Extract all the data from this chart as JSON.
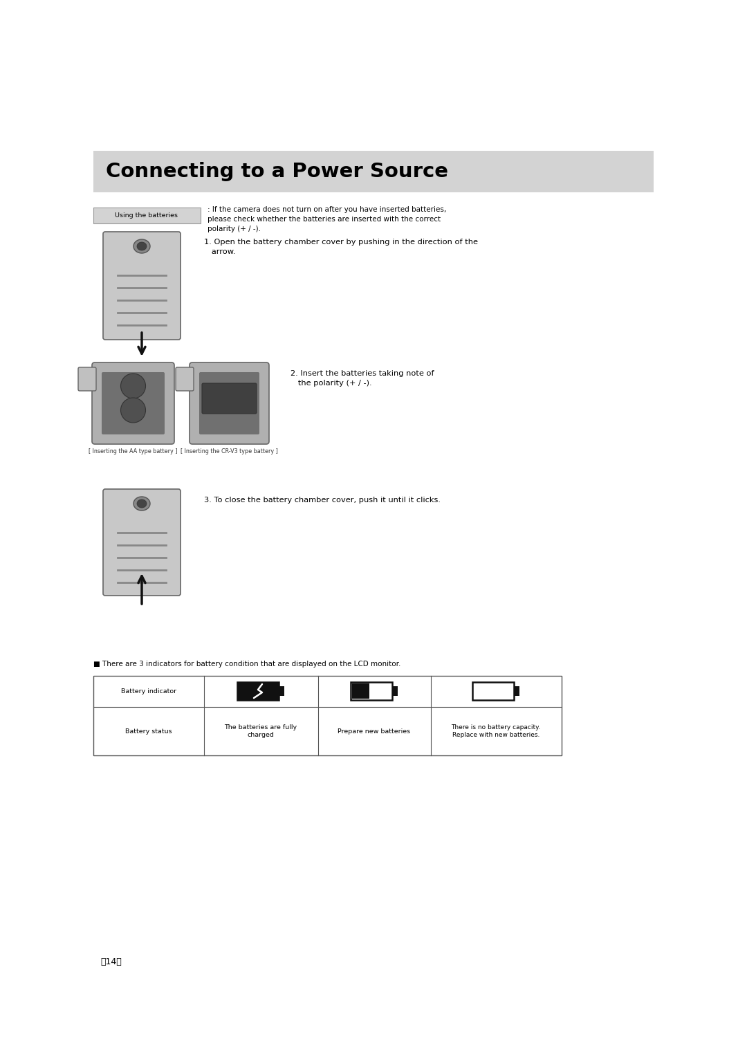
{
  "bg_color": "#ffffff",
  "page_width": 10.8,
  "page_height": 15.28,
  "title": "Connecting to a Power Source",
  "title_bg": "#d3d3d3",
  "title_fontsize": 21,
  "section_label": "Using the batteries",
  "section_label_bg": "#d3d3d3",
  "note_text": ": If the camera does not turn on after you have inserted batteries,\nplease check whether the batteries are inserted with the correct\npolarity (+ / -).",
  "step1_text": "1. Open the battery chamber cover by pushing in the direction of the\n   arrow.",
  "step2_text": "2. Insert the batteries taking note of\n   the polarity (+ / -).",
  "step3_text": "3. To close the battery chamber cover, push it until it clicks.",
  "caption1": "[ Inserting the AA type battery ]",
  "caption2": "[ Inserting the CR-V3 type battery ]",
  "indicator_note": "■ There are 3 indicators for battery condition that are displayed on the LCD monitor.",
  "table_col1_header": "Battery indicator",
  "table_col1_status": "Battery status",
  "table_col2_status": "The batteries are fully\ncharged",
  "table_col3_status": "Prepare new batteries",
  "table_col4_status": "There is no battery capacity.\nReplace with new batteries.",
  "page_number": "〈14〉"
}
